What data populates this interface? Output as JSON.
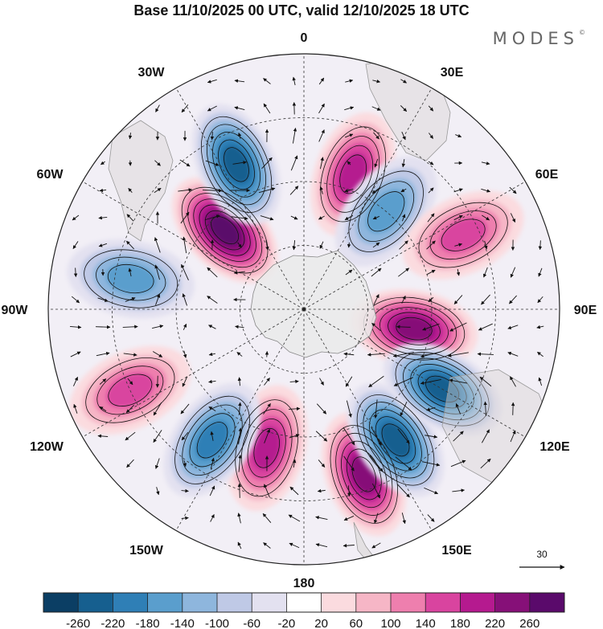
{
  "title": "Base 11/10/2025 00 UTC, valid 12/10/2025 18 UTC",
  "brand": "MODES",
  "brand_mark": "©",
  "map": {
    "projection": "south-polar-stereographic",
    "longitude_labels": [
      "0",
      "30E",
      "60E",
      "90E",
      "120E",
      "150E",
      "180",
      "150W",
      "120W",
      "90W",
      "60W",
      "30W"
    ],
    "latitude_circles": 4,
    "anomaly_centers": [
      {
        "sign": "positive",
        "lon": 160,
        "lat": -35,
        "value": 240
      },
      {
        "sign": "negative",
        "lon": 145,
        "lat": -40,
        "value": -240
      },
      {
        "sign": "positive",
        "lon": 195,
        "lat": -45,
        "value": 200
      },
      {
        "sign": "negative",
        "lon": 215,
        "lat": -40,
        "value": -200
      },
      {
        "sign": "positive",
        "lon": 245,
        "lat": -30,
        "value": 160
      },
      {
        "sign": "negative",
        "lon": 280,
        "lat": -35,
        "value": -140
      },
      {
        "sign": "positive",
        "lon": 315,
        "lat": -55,
        "value": 260
      },
      {
        "sign": "negative",
        "lon": 335,
        "lat": -40,
        "value": -220
      },
      {
        "sign": "positive",
        "lon": 20,
        "lat": -45,
        "value": 200
      },
      {
        "sign": "negative",
        "lon": 40,
        "lat": -50,
        "value": -140
      },
      {
        "sign": "positive",
        "lon": 65,
        "lat": -35,
        "value": 140
      },
      {
        "sign": "positive",
        "lon": 100,
        "lat": -55,
        "value": 240
      },
      {
        "sign": "negative",
        "lon": 120,
        "lat": -40,
        "value": -220
      }
    ]
  },
  "wind_reference": {
    "value": "30"
  },
  "colorbar": {
    "tick_labels": [
      "-260",
      "-220",
      "-180",
      "-140",
      "-100",
      "-60",
      "-20",
      "20",
      "60",
      "100",
      "140",
      "180",
      "220",
      "260"
    ],
    "colors": [
      "#0b3e64",
      "#165f8f",
      "#2f7fb6",
      "#5a9ecd",
      "#8eb6dd",
      "#bfc9e6",
      "#e3e1f0",
      "#ffffff",
      "#fbdbdf",
      "#f6b6c6",
      "#ee7fae",
      "#d9449f",
      "#b51a8f",
      "#861078",
      "#5a0a6b"
    ]
  }
}
